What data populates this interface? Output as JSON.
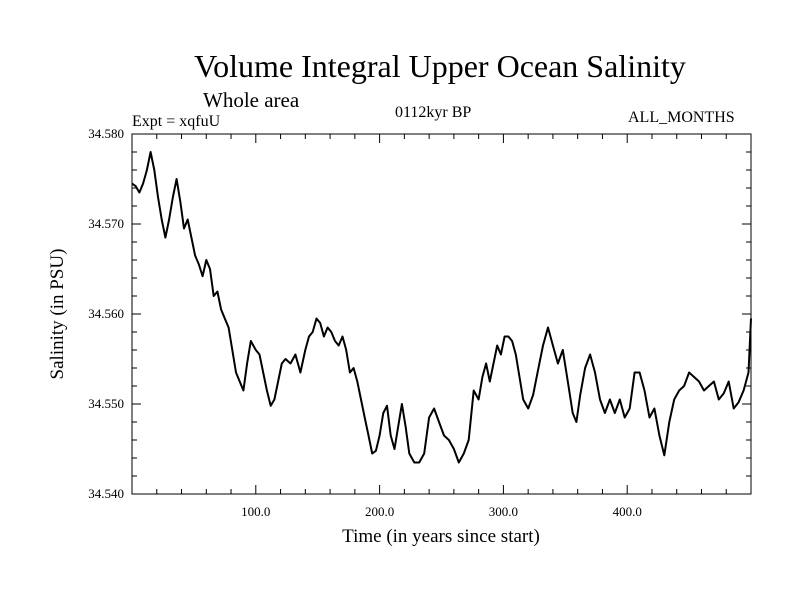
{
  "header": {
    "title": "Volume Integral Upper Ocean Salinity",
    "subtitle": "Whole area",
    "experiment": "Expt = xqfuU",
    "period": "0112kyr BP",
    "months": "ALL_MONTHS"
  },
  "chart_data": {
    "type": "line",
    "title": "Volume Integral Upper Ocean Salinity",
    "subtitle": "Whole area",
    "xlabel": "Time (in years since start)",
    "ylabel": "Salinity (in PSU)",
    "xlim": [
      0,
      500
    ],
    "ylim": [
      34.54,
      34.58
    ],
    "x_ticks": [
      100,
      200,
      300,
      400
    ],
    "x_tick_labels": [
      "100.0",
      "200.0",
      "300.0",
      "400.0"
    ],
    "y_ticks": [
      34.54,
      34.55,
      34.56,
      34.57,
      34.58
    ],
    "y_tick_labels": [
      "34.540",
      "34.550",
      "34.560",
      "34.570",
      "34.580"
    ],
    "line_color": "#000000",
    "series": [
      {
        "name": "Salinity",
        "x": [
          0,
          3,
          6,
          9,
          12,
          15,
          18,
          21,
          24,
          27,
          30,
          33,
          36,
          39,
          42,
          45,
          48,
          51,
          54,
          57,
          60,
          63,
          66,
          69,
          72,
          75,
          78,
          81,
          84,
          87,
          90,
          93,
          96,
          100,
          103,
          106,
          109,
          112,
          115,
          118,
          121,
          124,
          128,
          132,
          136,
          140,
          143,
          146,
          149,
          152,
          155,
          158,
          161,
          164,
          167,
          170,
          173,
          176,
          179,
          182,
          185,
          188,
          191,
          194,
          197,
          200,
          203,
          206,
          209,
          212,
          215,
          218,
          221,
          224,
          228,
          232,
          236,
          240,
          244,
          248,
          252,
          256,
          260,
          264,
          268,
          272,
          276,
          280,
          283,
          286,
          289,
          292,
          295,
          298,
          301,
          304,
          307,
          310,
          313,
          316,
          320,
          324,
          328,
          332,
          336,
          340,
          344,
          348,
          352,
          356,
          359,
          362,
          366,
          370,
          374,
          378,
          382,
          386,
          390,
          394,
          398,
          402,
          406,
          410,
          414,
          418,
          422,
          426,
          430,
          434,
          438,
          442,
          446,
          450,
          454,
          458,
          462,
          466,
          470,
          474,
          478,
          482,
          486,
          490,
          494,
          498,
          500
        ],
        "values": [
          34.5745,
          34.5742,
          34.5735,
          34.5745,
          34.576,
          34.578,
          34.576,
          34.573,
          34.5705,
          34.5685,
          34.5705,
          34.573,
          34.575,
          34.5725,
          34.5695,
          34.5705,
          34.5685,
          34.5665,
          34.5655,
          34.5642,
          34.566,
          34.565,
          34.562,
          34.5625,
          34.5605,
          34.5595,
          34.5585,
          34.556,
          34.5535,
          34.5525,
          34.5515,
          34.5545,
          34.557,
          34.556,
          34.5555,
          34.5535,
          34.5515,
          34.5498,
          34.5505,
          34.5525,
          34.5545,
          34.555,
          34.5545,
          34.5555,
          34.5535,
          34.556,
          34.5575,
          34.558,
          34.5595,
          34.559,
          34.5575,
          34.5585,
          34.558,
          34.557,
          34.5565,
          34.5575,
          34.556,
          34.5535,
          34.554,
          34.5525,
          34.5505,
          34.5485,
          34.5465,
          34.5445,
          34.5448,
          34.5465,
          34.549,
          34.5498,
          34.5465,
          34.545,
          34.5475,
          34.55,
          34.5475,
          34.5445,
          34.5435,
          34.5435,
          34.5445,
          34.5485,
          34.5495,
          34.548,
          34.5465,
          34.546,
          34.545,
          34.5435,
          34.5445,
          34.546,
          34.5515,
          34.5505,
          34.553,
          34.5545,
          34.5525,
          34.5545,
          34.5565,
          34.5555,
          34.5575,
          34.5575,
          34.557,
          34.5555,
          34.553,
          34.5505,
          34.5495,
          34.551,
          34.5538,
          34.5565,
          34.5585,
          34.5565,
          34.5545,
          34.556,
          34.5525,
          34.549,
          34.548,
          34.551,
          34.554,
          34.5555,
          34.5535,
          34.5505,
          34.549,
          34.5505,
          34.549,
          34.5505,
          34.5485,
          34.5495,
          34.5535,
          34.5535,
          34.5515,
          34.5485,
          34.5495,
          34.5465,
          34.5443,
          34.548,
          34.5505,
          34.5515,
          34.552,
          34.5535,
          34.553,
          34.5525,
          34.5515,
          34.552,
          34.5525,
          34.5505,
          34.5512,
          34.5525,
          34.5495,
          34.5502,
          34.5515,
          34.5535,
          34.5595
        ]
      }
    ]
  }
}
